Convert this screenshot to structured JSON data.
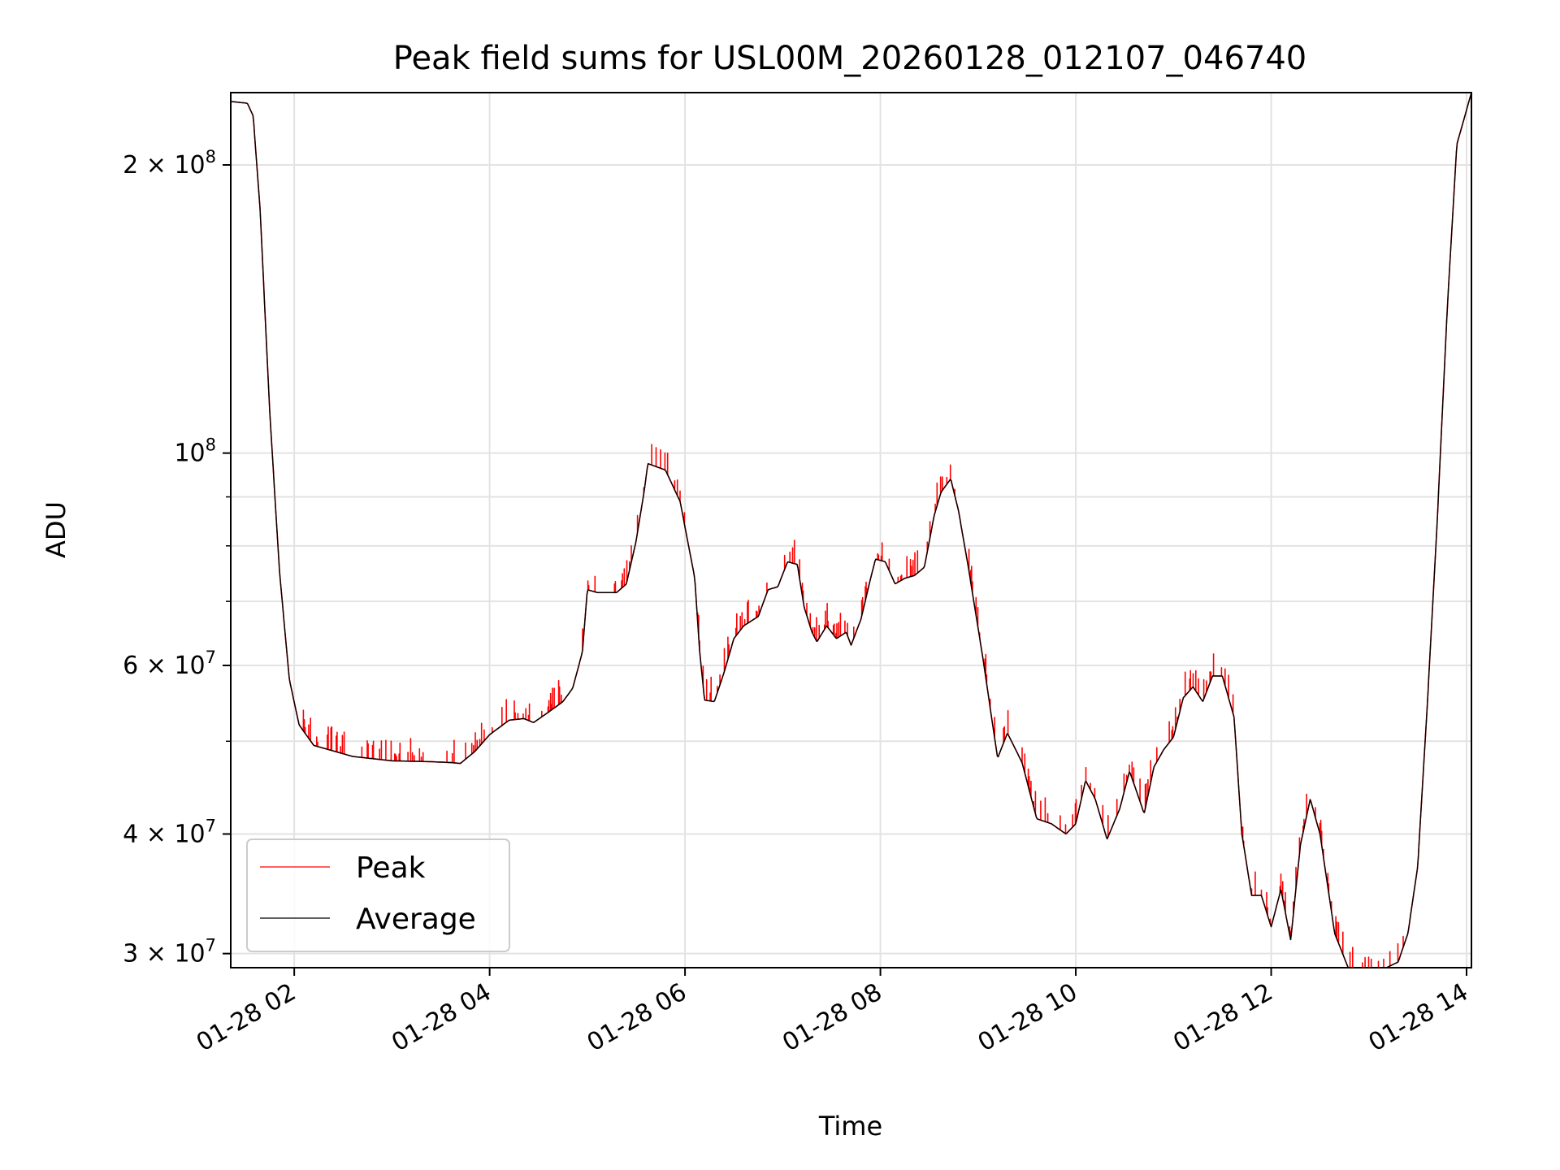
{
  "chart_data": {
    "type": "line",
    "title": "Peak field sums for USL00M_20260128_012107_046740",
    "xlabel": "Time",
    "ylabel": "ADU",
    "x_unit": "hours since 01-28 00:00",
    "xlim": [
      1.35,
      14.05
    ],
    "ylim": [
      29000000,
      238000000
    ],
    "yscale": "log",
    "grid": true,
    "legend_position": "lower-left",
    "x_ticks": [
      {
        "value": 2,
        "label": "01-28 02"
      },
      {
        "value": 4,
        "label": "01-28 04"
      },
      {
        "value": 6,
        "label": "01-28 06"
      },
      {
        "value": 8,
        "label": "01-28 08"
      },
      {
        "value": 10,
        "label": "01-28 10"
      },
      {
        "value": 12,
        "label": "01-28 12"
      },
      {
        "value": 14,
        "label": "01-28 14"
      }
    ],
    "y_major_ticks": [
      {
        "value": 30000000,
        "mantissa": "3",
        "exponent": "7"
      },
      {
        "value": 40000000,
        "mantissa": "4",
        "exponent": "7"
      },
      {
        "value": 60000000,
        "mantissa": "6",
        "exponent": "7"
      },
      {
        "value": 100000000,
        "mantissa": "",
        "exponent": "8"
      },
      {
        "value": 200000000,
        "mantissa": "2",
        "exponent": "8"
      }
    ],
    "y_minor_ticks": [
      50000000,
      70000000,
      80000000,
      90000000
    ],
    "series": [
      {
        "name": "Peak",
        "color": "#ff0000",
        "spike_noise": true,
        "x": [
          1.35,
          1.52,
          1.58,
          1.65,
          1.75,
          1.85,
          1.95,
          2.05,
          2.2,
          2.6,
          3.0,
          3.4,
          3.6,
          3.7,
          3.85,
          4.0,
          4.2,
          4.35,
          4.45,
          4.6,
          4.75,
          4.85,
          4.95,
          5.0,
          5.1,
          5.3,
          5.4,
          5.5,
          5.58,
          5.62,
          5.8,
          5.95,
          6.1,
          6.15,
          6.2,
          6.3,
          6.4,
          6.5,
          6.6,
          6.75,
          6.85,
          6.95,
          7.05,
          7.15,
          7.22,
          7.3,
          7.35,
          7.45,
          7.55,
          7.65,
          7.7,
          7.8,
          7.9,
          7.95,
          8.05,
          8.15,
          8.25,
          8.35,
          8.45,
          8.55,
          8.62,
          8.72,
          8.8,
          8.9,
          9.05,
          9.12,
          9.2,
          9.3,
          9.45,
          9.6,
          9.75,
          9.9,
          10.0,
          10.1,
          10.2,
          10.32,
          10.45,
          10.55,
          10.6,
          10.7,
          10.8,
          10.9,
          11.0,
          11.1,
          11.2,
          11.3,
          11.4,
          11.5,
          11.62,
          11.7,
          11.8,
          11.9,
          12.0,
          12.1,
          12.2,
          12.3,
          12.4,
          12.5,
          12.65,
          12.8,
          13.0,
          13.15,
          13.3,
          13.4,
          13.5,
          13.6,
          13.7,
          13.8,
          13.9,
          14.05
        ],
        "values": [
          233000000,
          232000000,
          225000000,
          180000000,
          110000000,
          75000000,
          58000000,
          52000000,
          49500000,
          48200000,
          47700000,
          47600000,
          47500000,
          47400000,
          48800000,
          50800000,
          52600000,
          52800000,
          52300000,
          53600000,
          55000000,
          56800000,
          62000000,
          72000000,
          71500000,
          71500000,
          73000000,
          81000000,
          91000000,
          97500000,
          96000000,
          89000000,
          74000000,
          62000000,
          55200000,
          55000000,
          59000000,
          64000000,
          66000000,
          67500000,
          72000000,
          72500000,
          77000000,
          76500000,
          69000000,
          65000000,
          63500000,
          66000000,
          64000000,
          65000000,
          63000000,
          67000000,
          74000000,
          77500000,
          77000000,
          73000000,
          74000000,
          74500000,
          76000000,
          86000000,
          91000000,
          94000000,
          87000000,
          76000000,
          61000000,
          54500000,
          48000000,
          51000000,
          47500000,
          41500000,
          41000000,
          40000000,
          41000000,
          45500000,
          43500000,
          39500000,
          42500000,
          46500000,
          45000000,
          42000000,
          47000000,
          49000000,
          50500000,
          55500000,
          57000000,
          55000000,
          58500000,
          58500000,
          53000000,
          40000000,
          34500000,
          34500000,
          32000000,
          35000000,
          31000000,
          39000000,
          43500000,
          40000000,
          31500000,
          28800000,
          28700000,
          28900000,
          29400000,
          31500000,
          37000000,
          55000000,
          85000000,
          140000000,
          210000000,
          238000000
        ]
      },
      {
        "name": "Average",
        "color": "#000000",
        "spike_noise": false,
        "x": [
          1.35,
          1.52,
          1.58,
          1.65,
          1.75,
          1.85,
          1.95,
          2.05,
          2.2,
          2.6,
          3.0,
          3.4,
          3.6,
          3.7,
          3.85,
          4.0,
          4.2,
          4.35,
          4.45,
          4.6,
          4.75,
          4.85,
          4.95,
          5.0,
          5.1,
          5.3,
          5.4,
          5.5,
          5.58,
          5.62,
          5.8,
          5.95,
          6.1,
          6.15,
          6.2,
          6.3,
          6.4,
          6.5,
          6.6,
          6.75,
          6.85,
          6.95,
          7.05,
          7.15,
          7.22,
          7.3,
          7.35,
          7.45,
          7.55,
          7.65,
          7.7,
          7.8,
          7.9,
          7.95,
          8.05,
          8.15,
          8.25,
          8.35,
          8.45,
          8.55,
          8.62,
          8.72,
          8.8,
          8.9,
          9.05,
          9.12,
          9.2,
          9.3,
          9.45,
          9.6,
          9.75,
          9.9,
          10.0,
          10.1,
          10.2,
          10.32,
          10.45,
          10.55,
          10.6,
          10.7,
          10.8,
          10.9,
          11.0,
          11.1,
          11.2,
          11.3,
          11.4,
          11.5,
          11.62,
          11.7,
          11.8,
          11.9,
          12.0,
          12.1,
          12.2,
          12.3,
          12.4,
          12.5,
          12.65,
          12.8,
          13.0,
          13.15,
          13.3,
          13.4,
          13.5,
          13.6,
          13.7,
          13.8,
          13.9,
          14.05
        ],
        "values": [
          233000000,
          232000000,
          225000000,
          180000000,
          110000000,
          75000000,
          58000000,
          52000000,
          49500000,
          48200000,
          47700000,
          47600000,
          47500000,
          47400000,
          48800000,
          50800000,
          52600000,
          52800000,
          52300000,
          53600000,
          55000000,
          56800000,
          62000000,
          72000000,
          71500000,
          71500000,
          73000000,
          81000000,
          91000000,
          97500000,
          96000000,
          89000000,
          74000000,
          62000000,
          55200000,
          55000000,
          59000000,
          64000000,
          66000000,
          67500000,
          72000000,
          72500000,
          77000000,
          76500000,
          69000000,
          65000000,
          63500000,
          66000000,
          64000000,
          65000000,
          63000000,
          67000000,
          74000000,
          77500000,
          77000000,
          73000000,
          74000000,
          74500000,
          76000000,
          86000000,
          91000000,
          94000000,
          87000000,
          76000000,
          61000000,
          54500000,
          48000000,
          51000000,
          47500000,
          41500000,
          41000000,
          40000000,
          41000000,
          45500000,
          43500000,
          39500000,
          42500000,
          46500000,
          45000000,
          42000000,
          47000000,
          49000000,
          50500000,
          55500000,
          57000000,
          55000000,
          58500000,
          58500000,
          53000000,
          40000000,
          34500000,
          34500000,
          32000000,
          35000000,
          31000000,
          39000000,
          43500000,
          40000000,
          31500000,
          28800000,
          28700000,
          28900000,
          29400000,
          31500000,
          37000000,
          55000000,
          85000000,
          140000000,
          210000000,
          238000000
        ]
      }
    ]
  }
}
